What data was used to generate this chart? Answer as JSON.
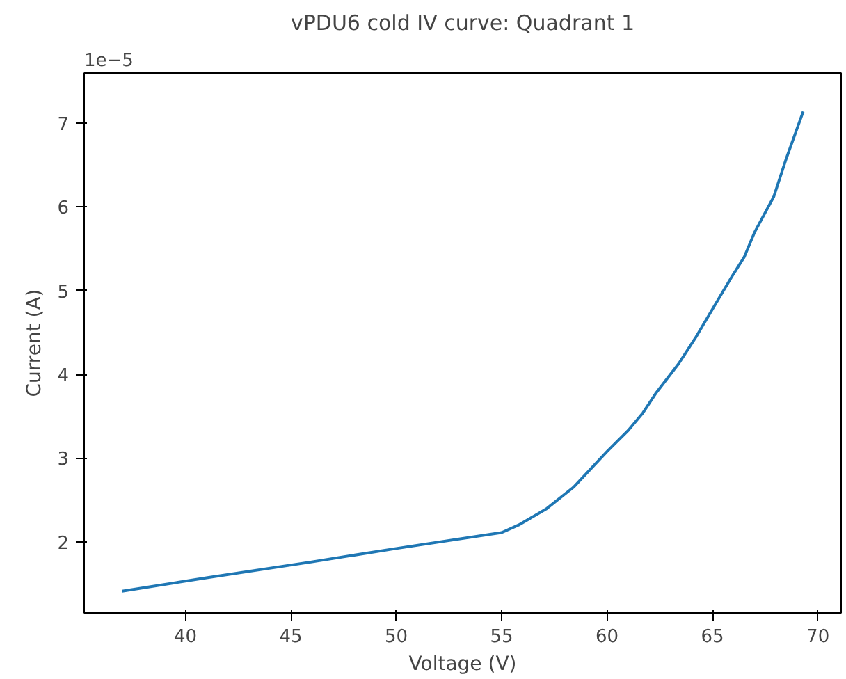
{
  "chart_data": {
    "type": "line",
    "title": "vPDU6 cold IV curve: Quadrant 1",
    "xlabel": "Voltage (V)",
    "ylabel": "Current (A)",
    "annotations": [
      "1e−5"
    ],
    "series": [
      {
        "color": "#1f77b4",
        "x": [
          37.0,
          41.0,
          46.0,
          50.0,
          55.0,
          55.8,
          57.1,
          58.4,
          60.0,
          61.0,
          61.7,
          62.3,
          63.4,
          64.2,
          65.0,
          65.9,
          66.5,
          67.0,
          67.9,
          68.5,
          69.3
        ],
        "values": [
          1.41,
          1.57,
          1.76,
          1.92,
          2.11,
          2.2,
          2.39,
          2.65,
          3.08,
          3.33,
          3.54,
          3.77,
          4.13,
          4.44,
          4.78,
          5.16,
          5.4,
          5.7,
          6.12,
          6.58,
          7.14
        ]
      }
    ],
    "xlim": [
      35.2,
      71.1
    ],
    "ylim": [
      1.15,
      7.6
    ],
    "xticks": [
      40,
      45,
      50,
      55,
      60,
      65,
      70
    ],
    "yticks": [
      2,
      3,
      4,
      5,
      6,
      7
    ],
    "line_style": "solid"
  }
}
